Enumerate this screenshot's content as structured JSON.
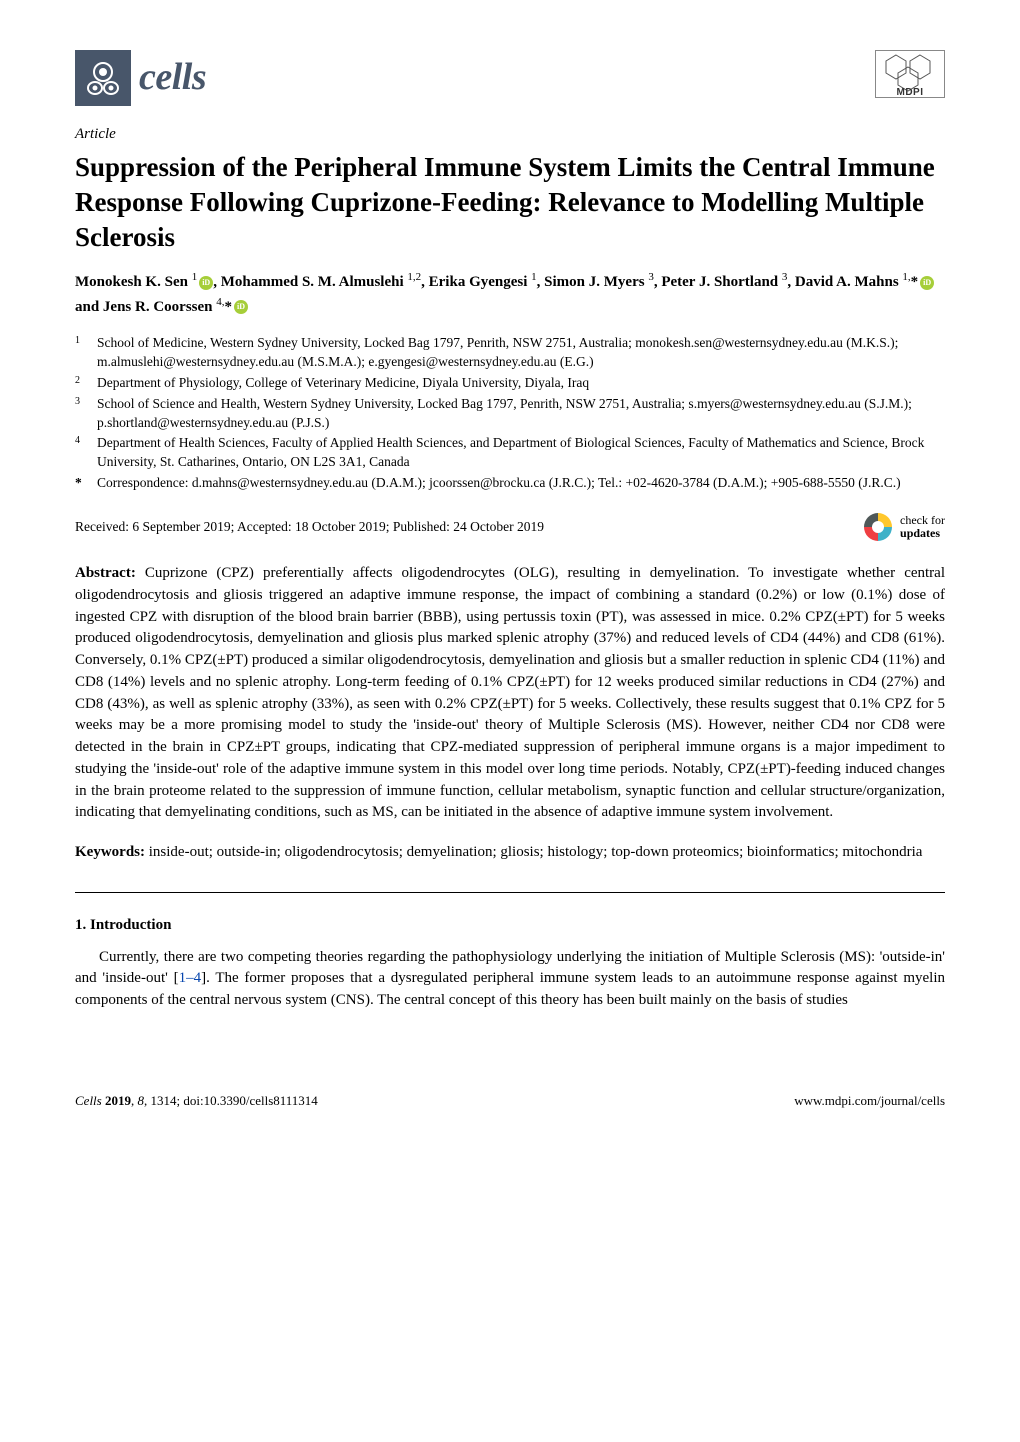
{
  "journal": {
    "name": "cells",
    "logo_bg": "#48566a",
    "publisher": "MDPI"
  },
  "article_type": "Article",
  "title": "Suppression of the Peripheral Immune System Limits the Central Immune Response Following Cuprizone-Feeding: Relevance to Modelling Multiple Sclerosis",
  "authors_html": "Monokesh K. Sen <sup>1</sup><span class='orcid' data-name='orcid-icon' data-interactable='false'></span>, Mohammed S. M. Almuslehi <sup>1,2</sup>, Erika Gyengesi <sup>1</sup>, Simon J. Myers <sup>3</sup>, Peter J. Shortland <sup>3</sup>, David A. Mahns <sup>1,</sup>*<span class='orcid' data-name='orcid-icon' data-interactable='false'></span> and Jens R. Coorssen <sup>4,</sup>*<span class='orcid' data-name='orcid-icon' data-interactable='false'></span>",
  "affiliations": [
    {
      "num": "1",
      "text": "School of Medicine, Western Sydney University, Locked Bag 1797, Penrith, NSW 2751, Australia; monokesh.sen@westernsydney.edu.au (M.K.S.); m.almuslehi@westernsydney.edu.au (M.S.M.A.); e.gyengesi@westernsydney.edu.au (E.G.)"
    },
    {
      "num": "2",
      "text": "Department of Physiology, College of Veterinary Medicine, Diyala University, Diyala, Iraq"
    },
    {
      "num": "3",
      "text": "School of Science and Health, Western Sydney University, Locked Bag 1797, Penrith, NSW 2751, Australia; s.myers@westernsydney.edu.au (S.J.M.); p.shortland@westernsydney.edu.au (P.J.S.)"
    },
    {
      "num": "4",
      "text": "Department of Health Sciences, Faculty of Applied Health Sciences, and Department of Biological Sciences, Faculty of Mathematics and Science, Brock University, St. Catharines, Ontario, ON L2S 3A1, Canada"
    }
  ],
  "correspondence": "Correspondence: d.mahns@westernsydney.edu.au (D.A.M.); jcoorssen@brocku.ca (J.R.C.); Tel.: +02-4620-3784 (D.A.M.); +905-688-5550 (J.R.C.)",
  "dates": "Received: 6 September 2019; Accepted: 18 October 2019; Published: 24 October 2019",
  "check_updates": {
    "line1": "check for",
    "line2": "updates"
  },
  "abstract_label": "Abstract:",
  "abstract": "Cuprizone (CPZ) preferentially affects oligodendrocytes (OLG), resulting in demyelination. To investigate whether central oligodendrocytosis and gliosis triggered an adaptive immune response, the impact of combining a standard (0.2%) or low (0.1%) dose of ingested CPZ with disruption of the blood brain barrier (BBB), using pertussis toxin (PT), was assessed in mice. 0.2% CPZ(±PT) for 5 weeks produced oligodendrocytosis, demyelination and gliosis plus marked splenic atrophy (37%) and reduced levels of CD4 (44%) and CD8 (61%). Conversely, 0.1% CPZ(±PT) produced a similar oligodendrocytosis, demyelination and gliosis but a smaller reduction in splenic CD4 (11%) and CD8 (14%) levels and no splenic atrophy. Long-term feeding of 0.1% CPZ(±PT) for 12 weeks produced similar reductions in CD4 (27%) and CD8 (43%), as well as splenic atrophy (33%), as seen with 0.2% CPZ(±PT) for 5 weeks. Collectively, these results suggest that 0.1% CPZ for 5 weeks may be a more promising model to study the 'inside-out' theory of Multiple Sclerosis (MS). However, neither CD4 nor CD8 were detected in the brain in CPZ±PT groups, indicating that CPZ-mediated suppression of peripheral immune organs is a major impediment to studying the 'inside-out' role of the adaptive immune system in this model over long time periods. Notably, CPZ(±PT)-feeding induced changes in the brain proteome related to the suppression of immune function, cellular metabolism, synaptic function and cellular structure/organization, indicating that demyelinating conditions, such as MS, can be initiated in the absence of adaptive immune system involvement.",
  "keywords_label": "Keywords:",
  "keywords": "inside-out; outside-in; oligodendrocytosis; demyelination; gliosis; histology; top-down proteomics; bioinformatics; mitochondria",
  "section1_heading": "1. Introduction",
  "intro_para": "Currently, there are two competing theories regarding the pathophysiology underlying the initiation of Multiple Sclerosis (MS): 'outside-in' and 'inside-out' [",
  "intro_ref": "1–4",
  "intro_para_after": "]. The former proposes that a dysregulated peripheral immune system leads to an autoimmune response against myelin components of the central nervous system (CNS). The central concept of this theory has been built mainly on the basis of studies",
  "footer": {
    "left_journal": "Cells",
    "left_year": "2019",
    "left_vol": "8",
    "left_page": "1314",
    "left_doi": "doi:10.3390/cells8111314",
    "right": "www.mdpi.com/journal/cells"
  },
  "colors": {
    "orcid_green": "#a6ce39",
    "link_blue": "#0645ad",
    "crossref_yellow": "#ffc72c",
    "crossref_red": "#ef3e42",
    "crossref_blue": "#3eb1c8",
    "crossref_gray": "#4f5858"
  }
}
